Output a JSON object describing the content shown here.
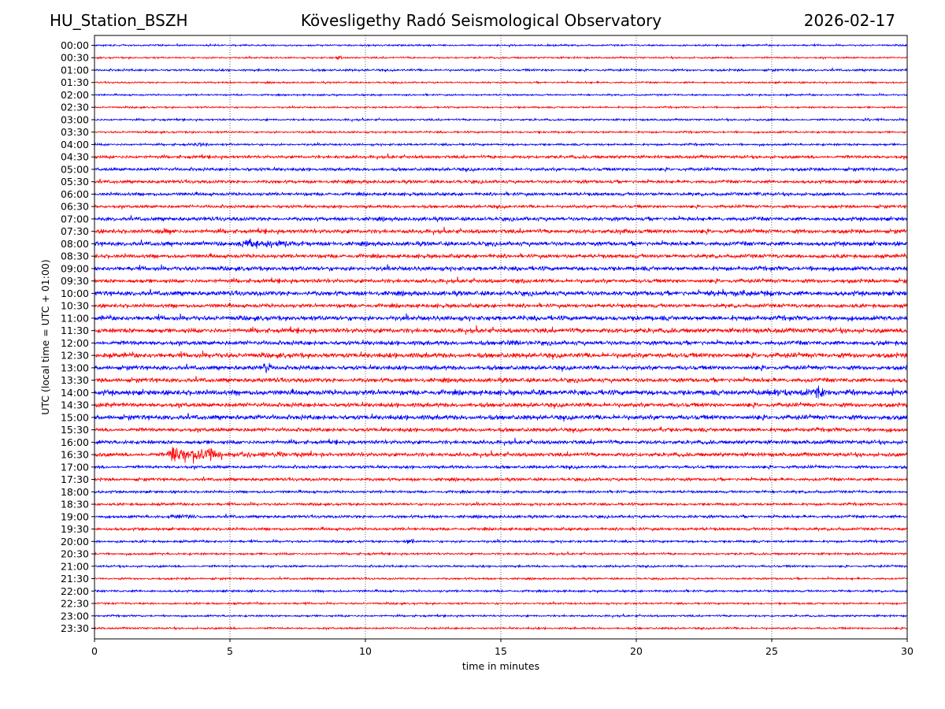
{
  "chart_data": {
    "type": "line",
    "title": "Kövesligethy Radó Seismological Observatory",
    "station": "HU_Station_BSZH",
    "date": "2026-02-17",
    "xlabel": "time in minutes",
    "ylabel": "UTC (local time = UTC + 01:00)",
    "xlim": [
      0,
      30
    ],
    "xticks": [
      "0",
      "5",
      "10",
      "15",
      "20",
      "25",
      "30"
    ],
    "grid": "vertical dotted",
    "colors": [
      "#0000ff",
      "#ff0000"
    ],
    "rows": [
      {
        "label": "00:00",
        "noise": 0.8
      },
      {
        "label": "00:30",
        "noise": 0.8
      },
      {
        "label": "01:00",
        "noise": 1.0
      },
      {
        "label": "01:30",
        "noise": 0.8
      },
      {
        "label": "02:00",
        "noise": 0.8
      },
      {
        "label": "02:30",
        "noise": 0.8
      },
      {
        "label": "03:00",
        "noise": 0.9
      },
      {
        "label": "03:30",
        "noise": 0.9
      },
      {
        "label": "04:00",
        "noise": 1.0
      },
      {
        "label": "04:30",
        "noise": 1.4
      },
      {
        "label": "05:00",
        "noise": 1.5
      },
      {
        "label": "05:30",
        "noise": 1.5
      },
      {
        "label": "06:00",
        "noise": 1.5
      },
      {
        "label": "06:30",
        "noise": 1.4
      },
      {
        "label": "07:00",
        "noise": 1.8
      },
      {
        "label": "07:30",
        "noise": 1.9
      },
      {
        "label": "08:00",
        "noise": 2.0
      },
      {
        "label": "08:30",
        "noise": 1.8
      },
      {
        "label": "09:00",
        "noise": 2.0
      },
      {
        "label": "09:30",
        "noise": 1.8
      },
      {
        "label": "10:00",
        "noise": 2.2
      },
      {
        "label": "10:30",
        "noise": 1.8
      },
      {
        "label": "11:00",
        "noise": 2.2
      },
      {
        "label": "11:30",
        "noise": 2.2
      },
      {
        "label": "12:00",
        "noise": 2.0
      },
      {
        "label": "12:30",
        "noise": 2.3
      },
      {
        "label": "13:00",
        "noise": 2.0
      },
      {
        "label": "13:30",
        "noise": 2.0
      },
      {
        "label": "14:00",
        "noise": 2.4
      },
      {
        "label": "14:30",
        "noise": 2.0
      },
      {
        "label": "15:00",
        "noise": 2.2
      },
      {
        "label": "15:30",
        "noise": 1.8
      },
      {
        "label": "16:00",
        "noise": 1.8
      },
      {
        "label": "16:30",
        "noise": 1.8
      },
      {
        "label": "17:00",
        "noise": 1.4
      },
      {
        "label": "17:30",
        "noise": 1.4
      },
      {
        "label": "18:00",
        "noise": 1.2
      },
      {
        "label": "18:30",
        "noise": 1.2
      },
      {
        "label": "19:00",
        "noise": 1.3
      },
      {
        "label": "19:30",
        "noise": 1.3
      },
      {
        "label": "20:00",
        "noise": 1.1
      },
      {
        "label": "20:30",
        "noise": 1.0
      },
      {
        "label": "21:00",
        "noise": 1.0
      },
      {
        "label": "21:30",
        "noise": 0.9
      },
      {
        "label": "22:00",
        "noise": 1.0
      },
      {
        "label": "22:30",
        "noise": 0.9
      },
      {
        "label": "23:00",
        "noise": 0.9
      },
      {
        "label": "23:30",
        "noise": 0.9
      }
    ],
    "events": [
      {
        "row": 33,
        "start": 2.6,
        "end": 4.7,
        "amp": 11
      },
      {
        "row": 33,
        "start": 4.7,
        "end": 9.0,
        "amp": 3.5
      },
      {
        "row": 16,
        "start": 5.0,
        "end": 8.0,
        "amp": 5
      },
      {
        "row": 16,
        "start": 2.5,
        "end": 4.5,
        "amp": 2.5
      },
      {
        "row": 28,
        "start": 23.5,
        "end": 29.5,
        "amp": 4.5
      },
      {
        "row": 28,
        "start": 26.6,
        "end": 27.0,
        "amp": 8
      },
      {
        "row": 28,
        "start": 16.4,
        "end": 16.6,
        "amp": 5
      },
      {
        "row": 20,
        "start": 22.3,
        "end": 25.5,
        "amp": 4.5
      },
      {
        "row": 26,
        "start": 6.2,
        "end": 6.5,
        "amp": 8
      },
      {
        "row": 30,
        "start": 6.0,
        "end": 6.3,
        "amp": 5
      },
      {
        "row": 30,
        "start": 29.2,
        "end": 29.5,
        "amp": 4
      },
      {
        "row": 8,
        "start": 3.5,
        "end": 4.6,
        "amp": 2.5
      },
      {
        "row": 38,
        "start": 2.5,
        "end": 4.5,
        "amp": 2.5
      },
      {
        "row": 40,
        "start": 11.5,
        "end": 11.8,
        "amp": 4
      },
      {
        "row": 15,
        "start": 2.0,
        "end": 3.5,
        "amp": 3.5
      },
      {
        "row": 15,
        "start": 19.3,
        "end": 20.0,
        "amp": 3.5
      },
      {
        "row": 24,
        "start": 15.0,
        "end": 16.5,
        "amp": 3.5
      },
      {
        "row": 24,
        "start": 28.8,
        "end": 29.3,
        "amp": 3
      },
      {
        "row": 29,
        "start": 0.0,
        "end": 1.0,
        "amp": 3.5
      },
      {
        "row": 19,
        "start": 15.0,
        "end": 16.5,
        "amp": 3
      },
      {
        "row": 1,
        "start": 8.9,
        "end": 9.1,
        "amp": 3
      },
      {
        "row": 12,
        "start": 24.3,
        "end": 24.7,
        "amp": 3.5
      },
      {
        "row": 25,
        "start": 8.6,
        "end": 9.0,
        "amp": 3.5
      },
      {
        "row": 31,
        "start": 20.8,
        "end": 21.2,
        "amp": 3
      },
      {
        "row": 6,
        "start": 28.3,
        "end": 28.7,
        "amp": 2.5
      }
    ]
  }
}
